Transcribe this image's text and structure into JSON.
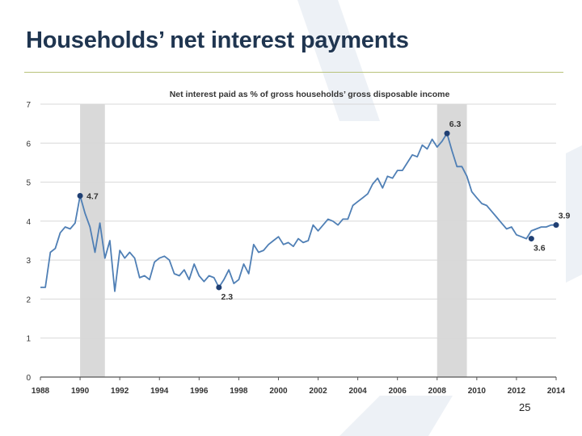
{
  "slide": {
    "title": "Households’ net interest payments",
    "page_number": "25"
  },
  "colors": {
    "title": "#1f3550",
    "line": "#4f7fb5",
    "marker": "#1f3f73",
    "recession_band": "#d9d9d9",
    "grid": "#d8d8d8",
    "rule": "#b8c27a",
    "background_shape": "#e8edf4"
  },
  "chart_data": {
    "type": "line",
    "title": "Net interest paid as % of gross households’ gross disposable income",
    "xlim": [
      1988,
      2014
    ],
    "ylim": [
      0,
      7
    ],
    "yticks": [
      "0",
      "1",
      "2",
      "3",
      "4",
      "5",
      "6",
      "7"
    ],
    "xticks": [
      "1988",
      "1990",
      "1992",
      "1994",
      "1996",
      "1998",
      "2000",
      "2002",
      "2004",
      "2006",
      "2008",
      "2010",
      "2012",
      "2014"
    ],
    "grid": true,
    "shaded_periods": [
      [
        1990.0,
        1991.25
      ],
      [
        2008.0,
        2009.5
      ]
    ],
    "series": [
      {
        "x": [
          1988.0,
          1988.25,
          1988.5,
          1988.75,
          1989.0,
          1989.25,
          1989.5,
          1989.75,
          1990.0,
          1990.25,
          1990.5,
          1990.75,
          1991.0,
          1991.25,
          1991.5,
          1991.75,
          1992.0,
          1992.25,
          1992.5,
          1992.75,
          1993.0,
          1993.25,
          1993.5,
          1993.75,
          1994.0,
          1994.25,
          1994.5,
          1994.75,
          1995.0,
          1995.25,
          1995.5,
          1995.75,
          1996.0,
          1996.25,
          1996.5,
          1996.75,
          1997.0,
          1997.25,
          1997.5,
          1997.75,
          1998.0,
          1998.25,
          1998.5,
          1998.75,
          1999.0,
          1999.25,
          1999.5,
          1999.75,
          2000.0,
          2000.25,
          2000.5,
          2000.75,
          2001.0,
          2001.25,
          2001.5,
          2001.75,
          2002.0,
          2002.25,
          2002.5,
          2002.75,
          2003.0,
          2003.25,
          2003.5,
          2003.75,
          2004.0,
          2004.25,
          2004.5,
          2004.75,
          2005.0,
          2005.25,
          2005.5,
          2005.75,
          2006.0,
          2006.25,
          2006.5,
          2006.75,
          2007.0,
          2007.25,
          2007.5,
          2007.75,
          2008.0,
          2008.25,
          2008.5,
          2008.75,
          2009.0,
          2009.25,
          2009.5,
          2009.75,
          2010.0,
          2010.25,
          2010.5,
          2010.75,
          2011.0,
          2011.25,
          2011.5,
          2011.75,
          2012.0,
          2012.25,
          2012.5,
          2012.75,
          2013.0,
          2013.25,
          2013.5,
          2013.75,
          2014.0
        ],
        "y": [
          2.3,
          2.3,
          3.2,
          3.3,
          3.7,
          3.85,
          3.8,
          3.95,
          4.65,
          4.2,
          3.85,
          3.2,
          3.95,
          3.05,
          3.5,
          2.2,
          3.25,
          3.05,
          3.2,
          3.05,
          2.55,
          2.6,
          2.5,
          2.95,
          3.05,
          3.1,
          3.0,
          2.65,
          2.6,
          2.75,
          2.5,
          2.9,
          2.6,
          2.45,
          2.6,
          2.55,
          2.3,
          2.5,
          2.75,
          2.4,
          2.5,
          2.9,
          2.65,
          3.4,
          3.2,
          3.25,
          3.4,
          3.5,
          3.6,
          3.4,
          3.45,
          3.35,
          3.55,
          3.45,
          3.5,
          3.9,
          3.75,
          3.9,
          4.05,
          4.0,
          3.9,
          4.05,
          4.05,
          4.4,
          4.5,
          4.6,
          4.7,
          4.95,
          5.1,
          4.85,
          5.15,
          5.1,
          5.3,
          5.3,
          5.5,
          5.7,
          5.65,
          5.95,
          5.85,
          6.1,
          5.9,
          6.05,
          6.25,
          5.8,
          5.4,
          5.4,
          5.15,
          4.75,
          4.6,
          4.45,
          4.4,
          4.25,
          4.1,
          3.95,
          3.8,
          3.85,
          3.65,
          3.6,
          3.55,
          3.75,
          3.8,
          3.85,
          3.85,
          3.9,
          3.9
        ]
      }
    ],
    "annotations": [
      {
        "x": 1990.0,
        "y": 4.65,
        "label": "4.7",
        "pos": "right"
      },
      {
        "x": 1997.0,
        "y": 2.3,
        "label": "2.3",
        "pos": "below"
      },
      {
        "x": 2008.5,
        "y": 6.25,
        "label": "6.3",
        "pos": "above"
      },
      {
        "x": 2012.75,
        "y": 3.55,
        "label": "3.6",
        "pos": "below"
      },
      {
        "x": 2014.0,
        "y": 3.9,
        "label": "3.9",
        "pos": "above"
      }
    ]
  }
}
